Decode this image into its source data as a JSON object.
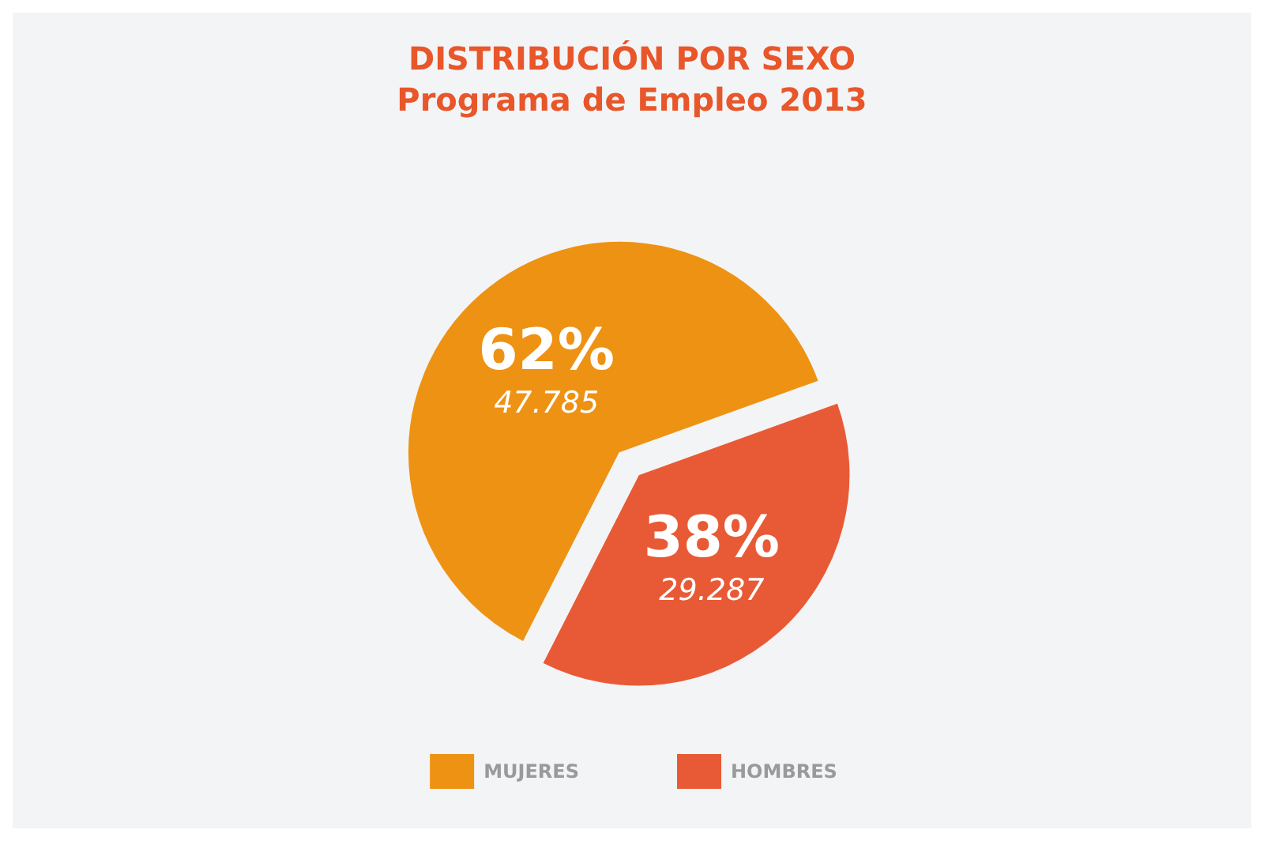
{
  "chart_data": {
    "type": "pie",
    "title": "DISTRIBUCIÓN POR SEXO",
    "subtitle": "Programa de Empleo 2013",
    "categories": [
      "MUJERES",
      "HOMBRES"
    ],
    "values": [
      47785,
      29287
    ],
    "colors": [
      "#ee9214",
      "#e85a35"
    ],
    "value_labels": [
      "62%\n47.785",
      "38%\n29.287"
    ],
    "legend": "bottom"
  }
}
